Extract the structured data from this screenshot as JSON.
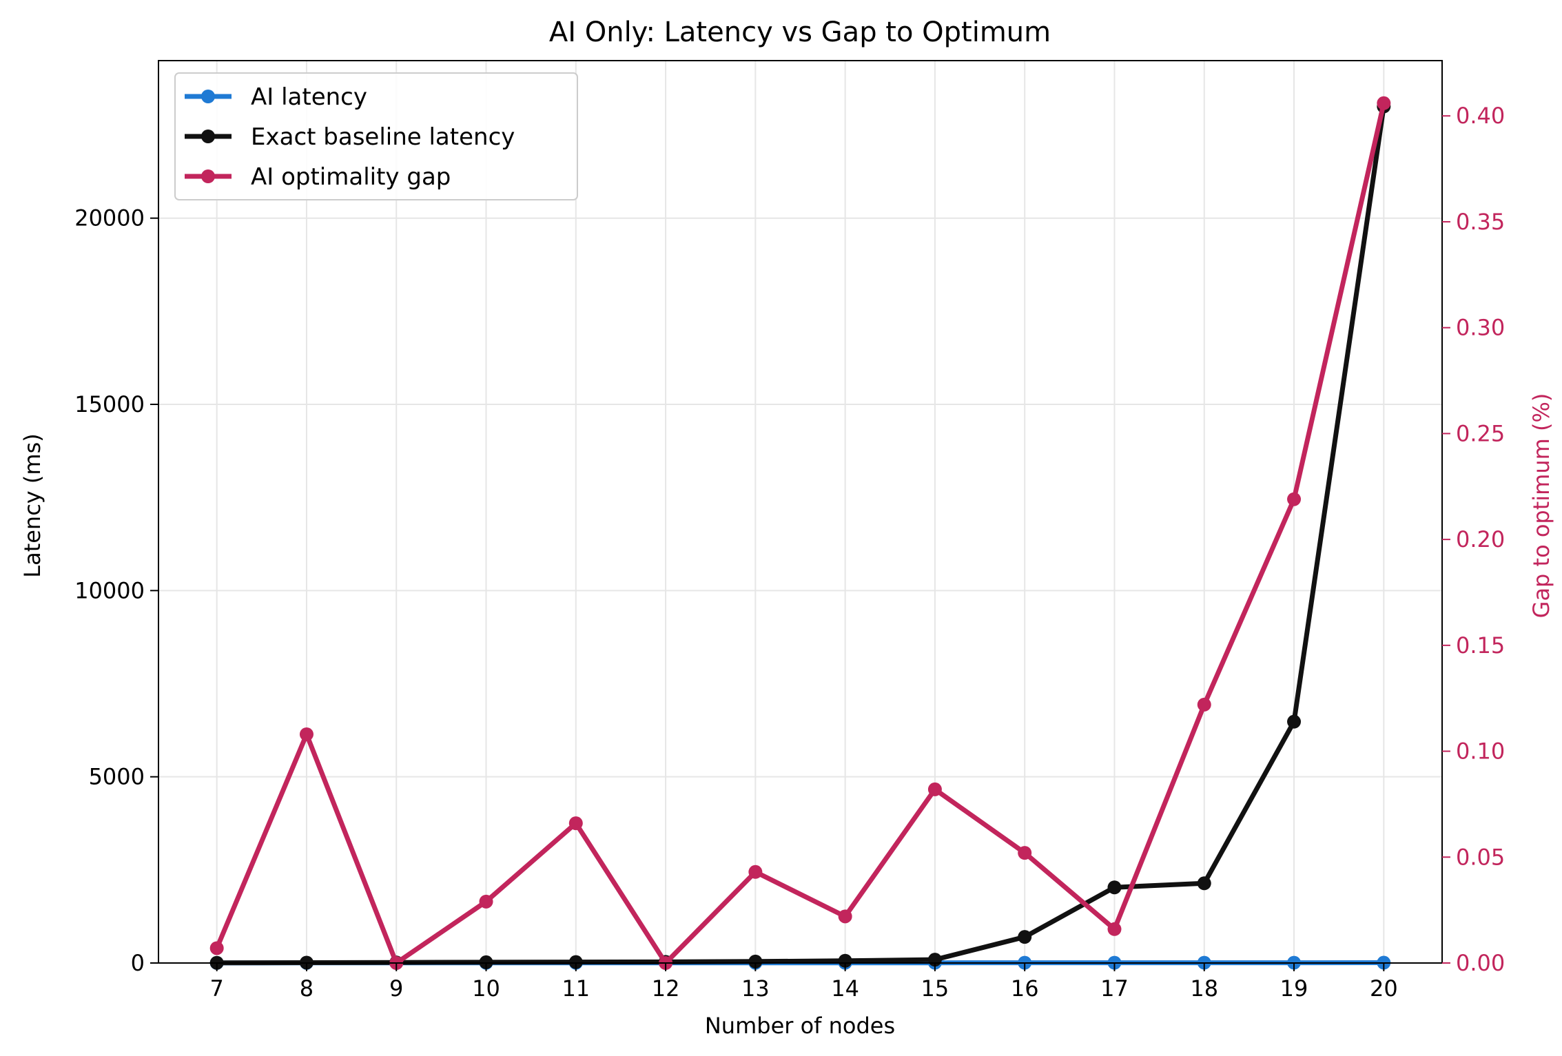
{
  "chart_data": {
    "type": "line",
    "title": "AI Only: Latency vs Gap to Optimum",
    "xlabel": "Number of nodes",
    "ylabel": "Latency (ms)",
    "y2label": "Gap to optimum (%)",
    "x": [
      7,
      8,
      9,
      10,
      11,
      12,
      13,
      14,
      15,
      16,
      17,
      18,
      19,
      20
    ],
    "ylim": [
      0,
      24230
    ],
    "y2lim": [
      0,
      0.4261
    ],
    "xlim": [
      6.35,
      20.65
    ],
    "yticks": [
      "0",
      "5000",
      "10000",
      "15000",
      "20000"
    ],
    "y2ticks": [
      "0.00",
      "0.05",
      "0.10",
      "0.15",
      "0.20",
      "0.25",
      "0.30",
      "0.35",
      "0.40"
    ],
    "grid": true,
    "legend_position": "upper-left",
    "series": [
      {
        "name": "AI latency",
        "axis": "left",
        "color": "#1f7ad4",
        "values": [
          2,
          3,
          3,
          4,
          4,
          5,
          5,
          6,
          6,
          7,
          7,
          8,
          8,
          9
        ]
      },
      {
        "name": "Exact baseline latency",
        "axis": "left",
        "color": "#111111",
        "values": [
          5,
          10,
          15,
          20,
          25,
          30,
          40,
          60,
          90,
          700,
          2030,
          2140,
          6480,
          23000
        ]
      },
      {
        "name": "AI optimality gap",
        "axis": "right",
        "color": "#c2255c",
        "values": [
          0.007,
          0.108,
          0.0,
          0.029,
          0.066,
          0.0,
          0.043,
          0.022,
          0.082,
          0.052,
          0.016,
          0.122,
          0.219,
          0.406
        ]
      }
    ]
  }
}
